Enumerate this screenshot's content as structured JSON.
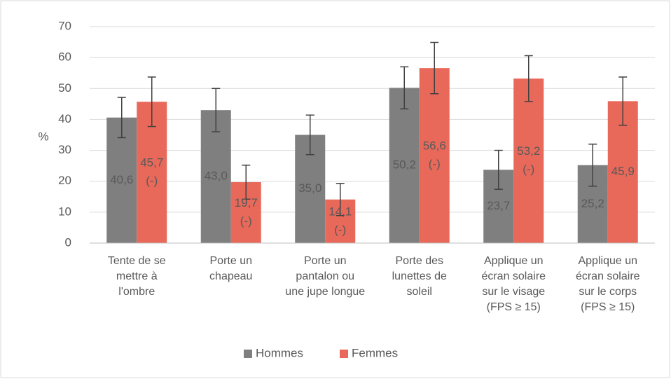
{
  "chart_data": {
    "type": "bar",
    "y_label": "%",
    "categories": [
      "Tente de se mettre à l'ombre",
      "Porte un chapeau",
      "Porte un pantalon ou une jupe longue",
      "Porte des lunettes de soleil",
      "Applique un écran solaire sur le visage (FPS ≥ 15)",
      "Applique un écran solaire sur le corps (FPS ≥ 15)"
    ],
    "series": [
      {
        "name": "Hommes",
        "color": "#7f7f7f",
        "values": [
          40.6,
          43.0,
          35.0,
          50.2,
          23.7,
          25.2
        ],
        "value_labels": [
          "40,6",
          "43,0",
          "35,0",
          "50,2",
          "23,7",
          "25,2"
        ],
        "annotations": [
          null,
          null,
          null,
          null,
          null,
          null
        ],
        "errors": [
          6.5,
          7.0,
          6.4,
          6.8,
          6.3,
          6.8
        ]
      },
      {
        "name": "Femmes",
        "color": "#e8695a",
        "values": [
          45.7,
          19.7,
          14.1,
          56.6,
          53.2,
          45.9
        ],
        "value_labels": [
          "45,7",
          "19,7",
          "14,1",
          "56,6",
          "53,2",
          "45,9"
        ],
        "annotations": [
          "(-)",
          "(-)",
          "(-)",
          "(-)",
          "(-)",
          null
        ],
        "errors": [
          8.0,
          5.5,
          5.2,
          8.3,
          7.4,
          7.8
        ]
      }
    ],
    "ylim": [
      0,
      70
    ],
    "yticks": [
      0,
      10,
      20,
      30,
      40,
      50,
      60,
      70
    ],
    "grid": true,
    "legend": "bottom"
  }
}
